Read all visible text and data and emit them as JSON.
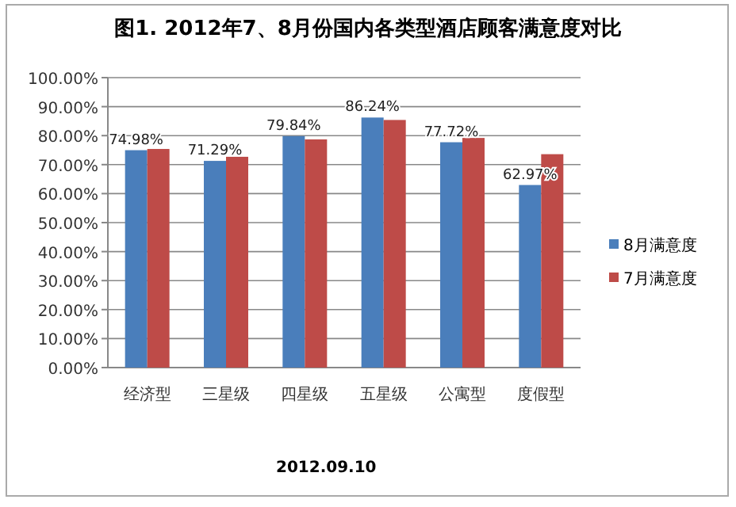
{
  "chart_data": {
    "type": "bar",
    "title": "图1. 2012年7、8月份国内各类型酒店顾客满意度对比",
    "categories": [
      "经济型",
      "三星级",
      "四星级",
      "五星级",
      "公寓型",
      "度假型"
    ],
    "series": [
      {
        "name": "8月满意度",
        "color": "#4a7ebb",
        "values": [
          74.98,
          71.29,
          79.84,
          86.24,
          77.72,
          62.97
        ],
        "value_labels": [
          "74.98%",
          "71.29%",
          "79.84%",
          "86.24%",
          "77.72%",
          "62.97%"
        ]
      },
      {
        "name": "7月满意度",
        "color": "#be4b48",
        "values": [
          75.4,
          72.7,
          78.7,
          85.4,
          79.2,
          73.6
        ]
      }
    ],
    "ylim": [
      0,
      100
    ],
    "yticks": [
      {
        "value": 0,
        "label": "0.00%"
      },
      {
        "value": 10,
        "label": "10.00%"
      },
      {
        "value": 20,
        "label": "20.00%"
      },
      {
        "value": 30,
        "label": "30.00%"
      },
      {
        "value": 40,
        "label": "40.00%"
      },
      {
        "value": 50,
        "label": "50.00%"
      },
      {
        "value": 60,
        "label": "60.00%"
      },
      {
        "value": 70,
        "label": "70.00%"
      },
      {
        "value": 80,
        "label": "80.00%"
      },
      {
        "value": 90,
        "label": "90.00%"
      },
      {
        "value": 100,
        "label": "100.00%"
      }
    ],
    "grid": "y",
    "legend": "right",
    "annotations": [
      "2012.09.10"
    ]
  }
}
